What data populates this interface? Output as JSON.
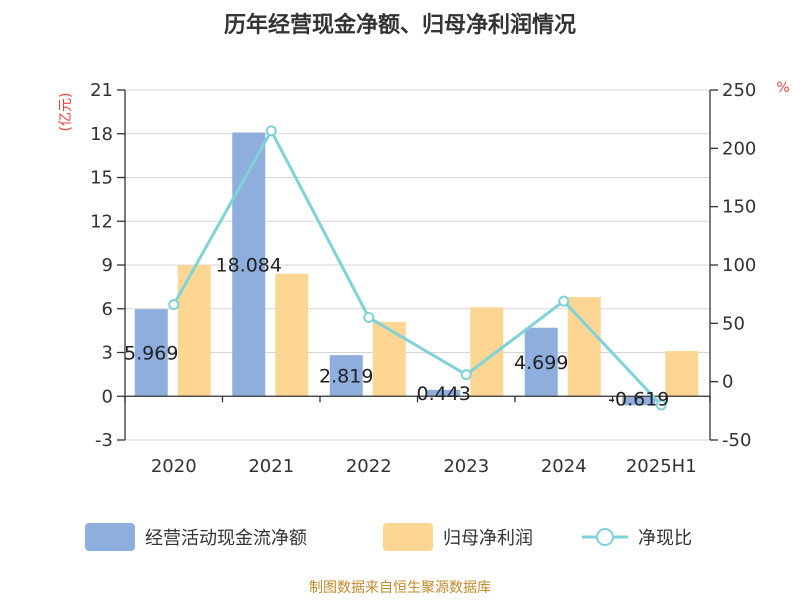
{
  "chart_data": {
    "type": "bar",
    "title": "历年经营现金净额、归母净利润情况",
    "categories": [
      "2020",
      "2021",
      "2022",
      "2023",
      "2024",
      "2025H1"
    ],
    "series": [
      {
        "name": "经营活动现金流净额",
        "kind": "bar",
        "axis": "left",
        "color": "#8eaedd",
        "values": [
          5.969,
          18.084,
          2.819,
          0.443,
          4.699,
          -0.619
        ],
        "labels": [
          "5.969",
          "18.084",
          "2.819",
          "0.443",
          "4.699",
          "-0.619"
        ]
      },
      {
        "name": "归母净利润",
        "kind": "bar",
        "axis": "left",
        "color": "#fdd693",
        "values": [
          9.0,
          8.4,
          5.1,
          6.1,
          6.8,
          3.1
        ]
      },
      {
        "name": "净现比",
        "kind": "line",
        "axis": "right",
        "color": "#7fd3d8",
        "values": [
          66,
          215,
          55,
          6,
          69,
          -20
        ]
      }
    ],
    "y_left": {
      "unit": "(亿元)",
      "unit_color": "#e8423c",
      "ylim": [
        -3,
        21
      ],
      "ticks": [
        "-3",
        "0",
        "3",
        "6",
        "9",
        "12",
        "15",
        "18",
        "21"
      ]
    },
    "y_right": {
      "unit": "%",
      "unit_color": "#e8423c",
      "ylim": [
        -50,
        250
      ],
      "ticks": [
        "-50",
        "0",
        "50",
        "100",
        "150",
        "200",
        "250"
      ]
    },
    "grid": true,
    "legend_position": "bottom"
  },
  "source": {
    "text": "制图数据来自恒生聚源数据库",
    "color": "#c08a2c"
  }
}
